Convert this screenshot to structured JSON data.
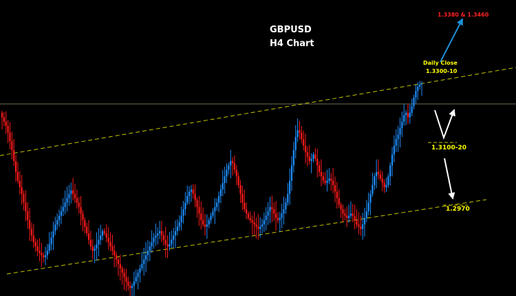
{
  "chart_data": {
    "type": "candlestick",
    "title": "GBPUSD",
    "subtitle": "H4 Chart",
    "colors": {
      "background": "#000000",
      "bull_candle": "#1e90ff",
      "bear_candle": "#ff1a1a",
      "channel_line": "#c8c800",
      "horizontal_line": "#6e6e5a",
      "target_arrow": "#1e8fd6",
      "scenario_arrow": "#ffffff"
    },
    "approx_price_range": [
      1.278,
      1.344
    ],
    "current_level": 1.3262,
    "closes": [
      1.3185,
      1.3175,
      1.3165,
      1.315,
      1.313,
      1.311,
      1.3085,
      1.306,
      1.304,
      1.3025,
      1.301,
      1.299,
      1.297,
      1.295,
      1.293,
      1.2915,
      1.29,
      1.289,
      1.288,
      1.2875,
      1.287,
      1.2865,
      1.287,
      1.288,
      1.2895,
      1.291,
      1.2925,
      1.294,
      1.295,
      1.296,
      1.297,
      1.298,
      1.299,
      1.3,
      1.301,
      1.3018,
      1.301,
      1.3,
      1.299,
      1.298,
      1.2965,
      1.295,
      1.2935,
      1.292,
      1.2905,
      1.289,
      1.288,
      1.2885,
      1.2895,
      1.2905,
      1.2915,
      1.2925,
      1.292,
      1.291,
      1.29,
      1.289,
      1.288,
      1.287,
      1.286,
      1.285,
      1.284,
      1.283,
      1.282,
      1.281,
      1.28,
      1.2795,
      1.28,
      1.281,
      1.282,
      1.283,
      1.284,
      1.285,
      1.286,
      1.287,
      1.288,
      1.289,
      1.29,
      1.291,
      1.2915,
      1.292,
      1.2925,
      1.2915,
      1.2905,
      1.2895,
      1.289,
      1.2895,
      1.2905,
      1.2915,
      1.2925,
      1.2935,
      1.2945,
      1.296,
      1.2975,
      1.299,
      1.3005,
      1.3015,
      1.302,
      1.301,
      1.2995,
      1.298,
      1.2965,
      1.295,
      1.294,
      1.2935,
      1.294,
      1.295,
      1.296,
      1.297,
      1.298,
      1.299,
      1.3005,
      1.302,
      1.3035,
      1.305,
      1.3065,
      1.3075,
      1.3085,
      1.308,
      1.3065,
      1.305,
      1.303,
      1.301,
      1.299,
      1.2975,
      1.2965,
      1.2955,
      1.295,
      1.2945,
      1.294,
      1.2935,
      1.293,
      1.2935,
      1.294,
      1.295,
      1.296,
      1.297,
      1.298,
      1.2975,
      1.2965,
      1.2955,
      1.295,
      1.2955,
      1.2965,
      1.2975,
      1.299,
      1.301,
      1.304,
      1.3075,
      1.311,
      1.314,
      1.3155,
      1.315,
      1.3135,
      1.312,
      1.3105,
      1.3095,
      1.3085,
      1.309,
      1.31,
      1.309,
      1.3075,
      1.306,
      1.305,
      1.304,
      1.3035,
      1.304,
      1.3045,
      1.304,
      1.303,
      1.3015,
      1.3,
      1.2985,
      1.2975,
      1.2965,
      1.296,
      1.2955,
      1.296,
      1.2965,
      1.296,
      1.295,
      1.294,
      1.2935,
      1.293,
      1.294,
      1.2955,
      1.297,
      1.299,
      1.301,
      1.303,
      1.305,
      1.306,
      1.3055,
      1.3045,
      1.3035,
      1.3025,
      1.303,
      1.305,
      1.3075,
      1.31,
      1.312,
      1.3135,
      1.3145,
      1.316,
      1.3175,
      1.319,
      1.3195,
      1.3185,
      1.3195,
      1.321,
      1.323,
      1.3245,
      1.3255,
      1.326,
      1.3262
    ]
  },
  "labels": {
    "title": "GBPUSD",
    "subtitle": "H4 Chart",
    "target_range": "1.3380 & 1.3460",
    "daily_close_title": "Daily Close",
    "daily_close_value": "1.3300-10",
    "support_1": "1.3100-20",
    "support_2": "1.2970"
  }
}
